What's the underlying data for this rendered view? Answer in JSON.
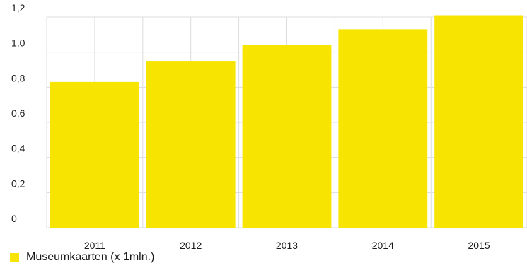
{
  "chart_data": {
    "type": "bar",
    "categories": [
      "2011",
      "2012",
      "2013",
      "2014",
      "2015"
    ],
    "series": [
      {
        "name": "Museumkaarten (x 1mln.)",
        "values": [
          0.83,
          0.95,
          1.04,
          1.13,
          1.21
        ]
      }
    ],
    "ylim": [
      0,
      1.2
    ],
    "yticks": [
      "0",
      "0,2",
      "0,4",
      "0,6",
      "0,8",
      "1,0",
      "1,2"
    ],
    "grid": true,
    "legend_position": "bottom-left",
    "bar_color": "#f7e400",
    "grid_color": "#dcdcdc"
  },
  "legend": {
    "label": "Museumkaarten (x 1mln.)"
  }
}
